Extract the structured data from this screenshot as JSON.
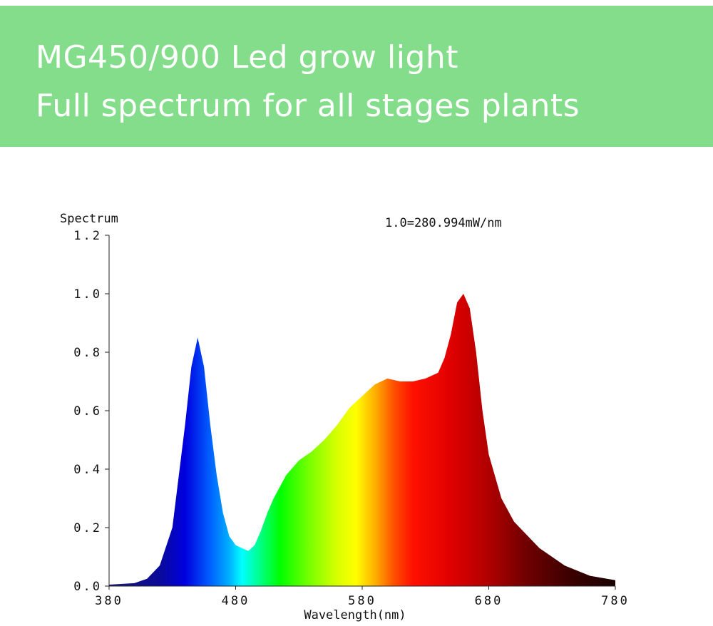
{
  "banner": {
    "line1": "MG450/900 Led grow light",
    "line2": "Full spectrum for all stages plants",
    "background": "#84dd8a",
    "text_color": "#ffffff"
  },
  "chart_data": {
    "type": "area",
    "title": "",
    "ylabel": "Spectrum",
    "xlabel": "Wavelength(nm)",
    "annotation": "1.0=280.994mW/nm",
    "xlim": [
      380,
      780
    ],
    "ylim": [
      0,
      1.2
    ],
    "xticks": [
      "380",
      "480",
      "580",
      "680",
      "780"
    ],
    "yticks": [
      "0.0",
      "0.2",
      "0.4",
      "0.6",
      "0.8",
      "1.0",
      "1.2"
    ],
    "grid": false,
    "fill": "visible-spectrum color gradient by wavelength",
    "series": [
      {
        "x": [
          380,
          400,
          410,
          420,
          430,
          440,
          445,
          450,
          455,
          460,
          465,
          470,
          475,
          480,
          485,
          490,
          495,
          500,
          505,
          510,
          520,
          530,
          540,
          550,
          560,
          570,
          580,
          590,
          600,
          610,
          620,
          630,
          640,
          645,
          650,
          655,
          660,
          665,
          670,
          675,
          680,
          690,
          700,
          720,
          740,
          760,
          780
        ],
        "y": [
          0.005,
          0.01,
          0.025,
          0.07,
          0.2,
          0.55,
          0.75,
          0.85,
          0.75,
          0.55,
          0.38,
          0.25,
          0.17,
          0.14,
          0.13,
          0.12,
          0.14,
          0.19,
          0.25,
          0.3,
          0.38,
          0.43,
          0.46,
          0.5,
          0.55,
          0.61,
          0.65,
          0.69,
          0.71,
          0.7,
          0.7,
          0.71,
          0.73,
          0.78,
          0.86,
          0.97,
          1.0,
          0.95,
          0.8,
          0.6,
          0.45,
          0.3,
          0.22,
          0.13,
          0.07,
          0.035,
          0.02
        ]
      }
    ]
  }
}
